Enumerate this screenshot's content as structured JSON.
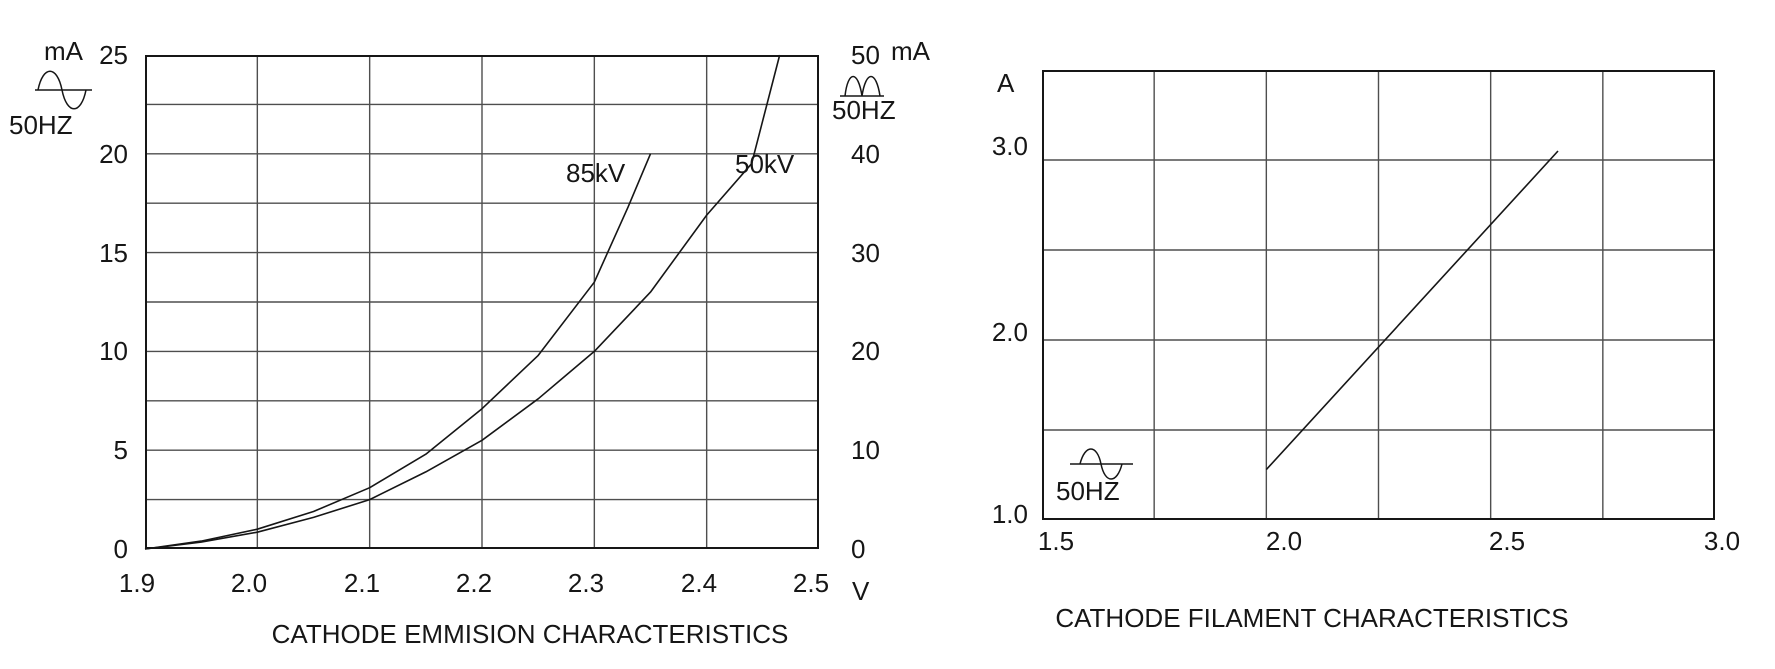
{
  "page": {
    "background": "#ffffff",
    "ink_color": "#161616",
    "grid_color": "#4e4e4e"
  },
  "chart_data": [
    {
      "type": "line",
      "title": "CATHODE EMMISION CHARACTERISTICS",
      "grid": true,
      "x_axis": {
        "unit": "V",
        "min": 1.9,
        "max": 2.5,
        "grid_step": 0.1,
        "tick_labels": [
          "1.9",
          "2.0",
          "2.1",
          "2.2",
          "2.3",
          "2.4",
          "2.5"
        ]
      },
      "y_axis_left": {
        "unit": "mA",
        "waveform": "sine",
        "waveform_label": "50HZ",
        "min": 0,
        "max": 25,
        "grid_step": 2.5,
        "tick_labels": [
          "25",
          "20",
          "15",
          "10",
          "5",
          "0"
        ]
      },
      "y_axis_right": {
        "unit": "mA",
        "waveform": "full-wave-rectified",
        "waveform_label": "50HZ",
        "min": 0,
        "max": 50,
        "grid_step": 5,
        "tick_labels": [
          "50",
          "40",
          "30",
          "20",
          "10",
          "0"
        ]
      },
      "series": [
        {
          "name": "85kV",
          "x": [
            1.9,
            1.95,
            2.0,
            2.05,
            2.1,
            2.15,
            2.2,
            2.25,
            2.3,
            2.33,
            2.35
          ],
          "y": [
            0,
            0.4,
            1.0,
            1.9,
            3.1,
            4.8,
            7.1,
            9.8,
            13.5,
            17.3,
            20.0
          ]
        },
        {
          "name": "50kV",
          "x": [
            1.9,
            1.95,
            2.0,
            2.05,
            2.1,
            2.15,
            2.2,
            2.25,
            2.3,
            2.35,
            2.4,
            2.44,
            2.465
          ],
          "y": [
            0,
            0.35,
            0.85,
            1.6,
            2.5,
            3.9,
            5.5,
            7.6,
            10.0,
            13.0,
            16.9,
            19.5,
            25.0
          ]
        }
      ]
    },
    {
      "type": "line",
      "title": "CATHODE FILAMENT CHARACTERISTICS",
      "grid": true,
      "x_axis": {
        "unit": "",
        "min": 1.5,
        "max": 3.0,
        "grid_step": 0.25,
        "tick_labels": [
          "1.5",
          "2.0",
          "2.5",
          "3.0"
        ]
      },
      "y_axis_left": {
        "unit": "A",
        "waveform": "sine",
        "waveform_label": "50HZ",
        "min": 1.0,
        "max": 3.5,
        "grid_step": 0.5,
        "tick_labels": [
          "3.0",
          "2.0",
          "1.0"
        ]
      },
      "series": [
        {
          "x": [
            2.0,
            2.65
          ],
          "y": [
            1.28,
            3.05
          ]
        }
      ]
    }
  ]
}
